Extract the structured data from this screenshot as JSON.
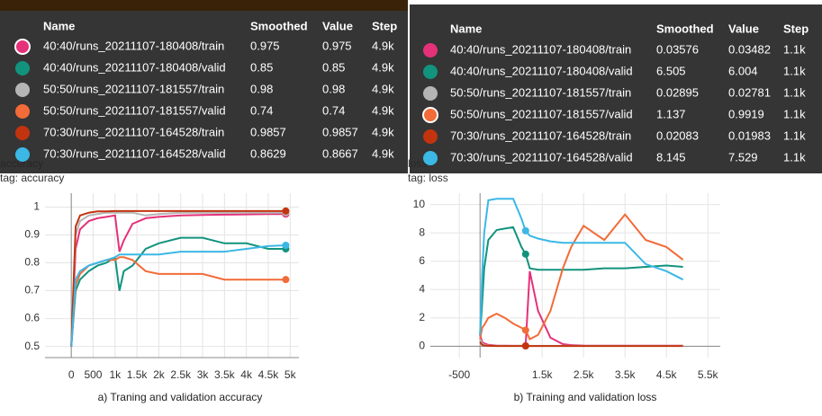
{
  "chart_data": [
    {
      "type": "line",
      "title": "accuracy",
      "subtitle": "tag: accuracy",
      "caption": "a) Traning and validation accuracy",
      "x": [
        0,
        100,
        200,
        400,
        600,
        800,
        1000,
        1100,
        1200,
        1400,
        1700,
        2000,
        2500,
        3000,
        3500,
        4000,
        4500,
        4900
      ],
      "series": [
        {
          "name": "40:40/runs_20211107-180408/train",
          "color": "#e5317a",
          "values": [
            0.5,
            0.85,
            0.92,
            0.95,
            0.96,
            0.965,
            0.97,
            0.84,
            0.88,
            0.94,
            0.96,
            0.965,
            0.97,
            0.972,
            0.973,
            0.974,
            0.975,
            0.975
          ]
        },
        {
          "name": "40:40/runs_20211107-180408/valid",
          "color": "#12937e",
          "values": [
            0.5,
            0.7,
            0.74,
            0.77,
            0.79,
            0.8,
            0.82,
            0.7,
            0.77,
            0.79,
            0.85,
            0.87,
            0.89,
            0.89,
            0.87,
            0.87,
            0.85,
            0.85
          ]
        },
        {
          "name": "50:50/runs_20211107-181557/train",
          "color": "#b5b5b5",
          "values": [
            0.5,
            0.9,
            0.95,
            0.97,
            0.975,
            0.98,
            0.98,
            0.98,
            0.98,
            0.98,
            0.97,
            0.975,
            0.98,
            0.98,
            0.98,
            0.98,
            0.98,
            0.98
          ]
        },
        {
          "name": "50:50/runs_20211107-181557/valid",
          "color": "#f26b38",
          "values": [
            0.5,
            0.72,
            0.76,
            0.79,
            0.8,
            0.81,
            0.81,
            0.82,
            0.82,
            0.81,
            0.77,
            0.76,
            0.76,
            0.76,
            0.74,
            0.74,
            0.74,
            0.74
          ]
        },
        {
          "name": "70:30/runs_20211107-164528/train",
          "color": "#c2340f",
          "values": [
            0.5,
            0.93,
            0.97,
            0.98,
            0.985,
            0.985,
            0.986,
            0.986,
            0.986,
            0.986,
            0.986,
            0.986,
            0.986,
            0.986,
            0.986,
            0.986,
            0.986,
            0.986
          ]
        },
        {
          "name": "70:30/runs_20211107-164528/valid",
          "color": "#3bb8e5",
          "values": [
            0.5,
            0.74,
            0.77,
            0.79,
            0.8,
            0.81,
            0.82,
            0.83,
            0.83,
            0.83,
            0.83,
            0.83,
            0.84,
            0.84,
            0.84,
            0.85,
            0.86,
            0.863
          ]
        }
      ],
      "xlim": [
        -600,
        5200
      ],
      "ylim": [
        0.46,
        1.05
      ],
      "xticks": [
        0,
        500,
        {
          "value": 1000,
          "label": "1k"
        },
        {
          "value": 1500,
          "label": "1.5k"
        },
        {
          "value": 2000,
          "label": "2k"
        },
        {
          "value": 2500,
          "label": "2.5k"
        },
        {
          "value": 3000,
          "label": "3k"
        },
        {
          "value": 3500,
          "label": "3.5k"
        },
        {
          "value": 4000,
          "label": "4k"
        },
        {
          "value": 4500,
          "label": "4.5k"
        },
        {
          "value": 5000,
          "label": "5k"
        }
      ],
      "yticks": [
        0.5,
        0.6,
        0.7,
        0.8,
        0.9,
        1
      ],
      "grid": true,
      "tooltip": {
        "columns": [
          "Name",
          "Smoothed",
          "Value",
          "Step"
        ],
        "rows": [
          [
            "0.975",
            "0.975",
            "4.9k"
          ],
          [
            "0.85",
            "0.85",
            "4.9k"
          ],
          [
            "0.98",
            "0.98",
            "4.9k"
          ],
          [
            "0.74",
            "0.74",
            "4.9k"
          ],
          [
            "0.9857",
            "0.9857",
            "4.9k"
          ],
          [
            "0.8629",
            "0.8667",
            "4.9k"
          ]
        ]
      }
    },
    {
      "type": "line",
      "title": "loss",
      "subtitle": "tag: loss",
      "caption": "b) Training and validation loss",
      "x": [
        0,
        50,
        100,
        200,
        400,
        600,
        800,
        1000,
        1100,
        1200,
        1400,
        1700,
        2000,
        2200,
        2500,
        3000,
        3500,
        4000,
        4500,
        4900
      ],
      "series": [
        {
          "name": "40:40/runs_20211107-180408/train",
          "color": "#e5317a",
          "values": [
            0.8,
            0.3,
            0.2,
            0.1,
            0.05,
            0.04,
            0.03,
            0.03,
            0.036,
            5.3,
            2.5,
            0.6,
            0.15,
            0.08,
            0.05,
            0.04,
            0.04,
            0.036,
            0.036,
            0.036
          ]
        },
        {
          "name": "40:40/runs_20211107-180408/valid",
          "color": "#12937e",
          "values": [
            0.8,
            3,
            5.5,
            7.5,
            8.2,
            8.3,
            8.4,
            7,
            6.5,
            5.5,
            5.4,
            5.4,
            5.4,
            5.4,
            5.4,
            5.5,
            5.5,
            5.6,
            5.7,
            5.6
          ]
        },
        {
          "name": "50:50/runs_20211107-181557/train",
          "color": "#b5b5b5",
          "values": [
            0.5,
            0.2,
            0.1,
            0.05,
            0.03,
            0.03,
            0.03,
            0.03,
            0.029,
            0.03,
            0.03,
            0.03,
            0.03,
            0.03,
            0.03,
            0.03,
            0.03,
            0.03,
            0.03,
            0.03
          ]
        },
        {
          "name": "50:50/runs_20211107-181557/valid",
          "color": "#f26b38",
          "values": [
            0.5,
            1.3,
            1.5,
            2,
            2.3,
            2,
            1.6,
            1.3,
            1.137,
            0.5,
            0.8,
            2.5,
            5.5,
            7,
            8.5,
            7.5,
            9.3,
            7.5,
            7,
            6.1
          ]
        },
        {
          "name": "70:30/runs_20211107-164528/train",
          "color": "#c2340f",
          "values": [
            0.3,
            0.1,
            0.05,
            0.03,
            0.02,
            0.02,
            0.02,
            0.02,
            0.021,
            0.02,
            0.02,
            0.02,
            0.02,
            0.02,
            0.02,
            0.02,
            0.02,
            0.02,
            0.02,
            0.02
          ]
        },
        {
          "name": "70:30/runs_20211107-164528/valid",
          "color": "#3bb8e5",
          "values": [
            0.8,
            5,
            8,
            10.3,
            10.4,
            10.4,
            10.4,
            9,
            8.145,
            7.8,
            7.6,
            7.4,
            7.3,
            7.3,
            7.3,
            7.3,
            7.3,
            5.8,
            5.3,
            4.7
          ]
        }
      ],
      "xlim": [
        -1200,
        5800
      ],
      "ylim": [
        -0.8,
        10.8
      ],
      "xticks": [
        -500,
        {
          "value": 1500,
          "label": "1.5k"
        },
        {
          "value": 2500,
          "label": "2.5k"
        },
        {
          "value": 3500,
          "label": "3.5k"
        },
        {
          "value": 4500,
          "label": "4.5k"
        },
        {
          "value": 5500,
          "label": "5.5k"
        }
      ],
      "yticks": [
        0,
        2,
        4,
        6,
        8,
        10
      ],
      "grid": true,
      "tooltip": {
        "columns": [
          "Name",
          "Smoothed",
          "Value",
          "Step"
        ],
        "rows": [
          [
            "0.03576",
            "0.03482",
            "1.1k"
          ],
          [
            "6.505",
            "6.004",
            "1.1k"
          ],
          [
            "0.02895",
            "0.02781",
            "1.1k"
          ],
          [
            "1.137",
            "0.9919",
            "1.1k"
          ],
          [
            "0.02083",
            "0.01983",
            "1.1k"
          ],
          [
            "8.145",
            "7.529",
            "1.1k"
          ]
        ]
      }
    }
  ]
}
